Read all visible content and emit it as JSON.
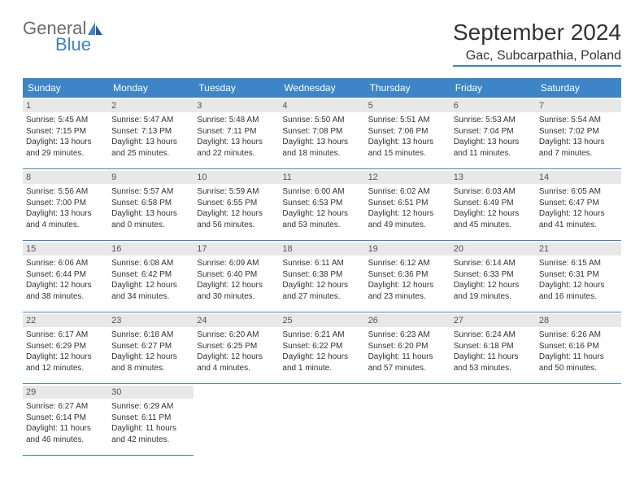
{
  "logo": {
    "word1": "General",
    "word2": "Blue"
  },
  "title": "September 2024",
  "location": "Gac, Subcarpathia, Poland",
  "weekday_bg": "#3d85c6",
  "weekday_fg": "#ffffff",
  "daynum_bg": "#e8e8e8",
  "border_color": "#3d85c6",
  "weekdays": [
    "Sunday",
    "Monday",
    "Tuesday",
    "Wednesday",
    "Thursday",
    "Friday",
    "Saturday"
  ],
  "days": [
    {
      "n": "1",
      "sunrise": "Sunrise: 5:45 AM",
      "sunset": "Sunset: 7:15 PM",
      "daylight": "Daylight: 13 hours and 29 minutes."
    },
    {
      "n": "2",
      "sunrise": "Sunrise: 5:47 AM",
      "sunset": "Sunset: 7:13 PM",
      "daylight": "Daylight: 13 hours and 25 minutes."
    },
    {
      "n": "3",
      "sunrise": "Sunrise: 5:48 AM",
      "sunset": "Sunset: 7:11 PM",
      "daylight": "Daylight: 13 hours and 22 minutes."
    },
    {
      "n": "4",
      "sunrise": "Sunrise: 5:50 AM",
      "sunset": "Sunset: 7:08 PM",
      "daylight": "Daylight: 13 hours and 18 minutes."
    },
    {
      "n": "5",
      "sunrise": "Sunrise: 5:51 AM",
      "sunset": "Sunset: 7:06 PM",
      "daylight": "Daylight: 13 hours and 15 minutes."
    },
    {
      "n": "6",
      "sunrise": "Sunrise: 5:53 AM",
      "sunset": "Sunset: 7:04 PM",
      "daylight": "Daylight: 13 hours and 11 minutes."
    },
    {
      "n": "7",
      "sunrise": "Sunrise: 5:54 AM",
      "sunset": "Sunset: 7:02 PM",
      "daylight": "Daylight: 13 hours and 7 minutes."
    },
    {
      "n": "8",
      "sunrise": "Sunrise: 5:56 AM",
      "sunset": "Sunset: 7:00 PM",
      "daylight": "Daylight: 13 hours and 4 minutes."
    },
    {
      "n": "9",
      "sunrise": "Sunrise: 5:57 AM",
      "sunset": "Sunset: 6:58 PM",
      "daylight": "Daylight: 13 hours and 0 minutes."
    },
    {
      "n": "10",
      "sunrise": "Sunrise: 5:59 AM",
      "sunset": "Sunset: 6:55 PM",
      "daylight": "Daylight: 12 hours and 56 minutes."
    },
    {
      "n": "11",
      "sunrise": "Sunrise: 6:00 AM",
      "sunset": "Sunset: 6:53 PM",
      "daylight": "Daylight: 12 hours and 53 minutes."
    },
    {
      "n": "12",
      "sunrise": "Sunrise: 6:02 AM",
      "sunset": "Sunset: 6:51 PM",
      "daylight": "Daylight: 12 hours and 49 minutes."
    },
    {
      "n": "13",
      "sunrise": "Sunrise: 6:03 AM",
      "sunset": "Sunset: 6:49 PM",
      "daylight": "Daylight: 12 hours and 45 minutes."
    },
    {
      "n": "14",
      "sunrise": "Sunrise: 6:05 AM",
      "sunset": "Sunset: 6:47 PM",
      "daylight": "Daylight: 12 hours and 41 minutes."
    },
    {
      "n": "15",
      "sunrise": "Sunrise: 6:06 AM",
      "sunset": "Sunset: 6:44 PM",
      "daylight": "Daylight: 12 hours and 38 minutes."
    },
    {
      "n": "16",
      "sunrise": "Sunrise: 6:08 AM",
      "sunset": "Sunset: 6:42 PM",
      "daylight": "Daylight: 12 hours and 34 minutes."
    },
    {
      "n": "17",
      "sunrise": "Sunrise: 6:09 AM",
      "sunset": "Sunset: 6:40 PM",
      "daylight": "Daylight: 12 hours and 30 minutes."
    },
    {
      "n": "18",
      "sunrise": "Sunrise: 6:11 AM",
      "sunset": "Sunset: 6:38 PM",
      "daylight": "Daylight: 12 hours and 27 minutes."
    },
    {
      "n": "19",
      "sunrise": "Sunrise: 6:12 AM",
      "sunset": "Sunset: 6:36 PM",
      "daylight": "Daylight: 12 hours and 23 minutes."
    },
    {
      "n": "20",
      "sunrise": "Sunrise: 6:14 AM",
      "sunset": "Sunset: 6:33 PM",
      "daylight": "Daylight: 12 hours and 19 minutes."
    },
    {
      "n": "21",
      "sunrise": "Sunrise: 6:15 AM",
      "sunset": "Sunset: 6:31 PM",
      "daylight": "Daylight: 12 hours and 16 minutes."
    },
    {
      "n": "22",
      "sunrise": "Sunrise: 6:17 AM",
      "sunset": "Sunset: 6:29 PM",
      "daylight": "Daylight: 12 hours and 12 minutes."
    },
    {
      "n": "23",
      "sunrise": "Sunrise: 6:18 AM",
      "sunset": "Sunset: 6:27 PM",
      "daylight": "Daylight: 12 hours and 8 minutes."
    },
    {
      "n": "24",
      "sunrise": "Sunrise: 6:20 AM",
      "sunset": "Sunset: 6:25 PM",
      "daylight": "Daylight: 12 hours and 4 minutes."
    },
    {
      "n": "25",
      "sunrise": "Sunrise: 6:21 AM",
      "sunset": "Sunset: 6:22 PM",
      "daylight": "Daylight: 12 hours and 1 minute."
    },
    {
      "n": "26",
      "sunrise": "Sunrise: 6:23 AM",
      "sunset": "Sunset: 6:20 PM",
      "daylight": "Daylight: 11 hours and 57 minutes."
    },
    {
      "n": "27",
      "sunrise": "Sunrise: 6:24 AM",
      "sunset": "Sunset: 6:18 PM",
      "daylight": "Daylight: 11 hours and 53 minutes."
    },
    {
      "n": "28",
      "sunrise": "Sunrise: 6:26 AM",
      "sunset": "Sunset: 6:16 PM",
      "daylight": "Daylight: 11 hours and 50 minutes."
    },
    {
      "n": "29",
      "sunrise": "Sunrise: 6:27 AM",
      "sunset": "Sunset: 6:14 PM",
      "daylight": "Daylight: 11 hours and 46 minutes."
    },
    {
      "n": "30",
      "sunrise": "Sunrise: 6:29 AM",
      "sunset": "Sunset: 6:11 PM",
      "daylight": "Daylight: 11 hours and 42 minutes."
    }
  ],
  "trailing_empty": 5
}
